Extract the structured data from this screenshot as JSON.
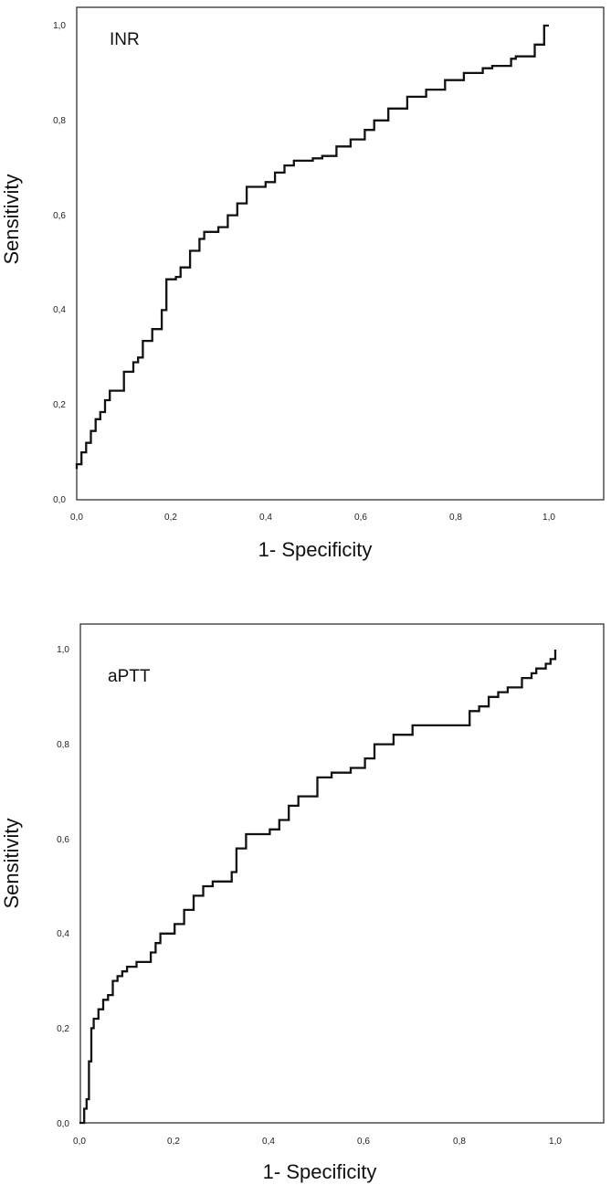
{
  "colors": {
    "line": "#111111",
    "frame": "#222222",
    "background": "#ffffff"
  },
  "chart_data": [
    {
      "type": "line",
      "title": "INR",
      "xlabel": "1- Specificity",
      "ylabel": "Sensitivity",
      "xlim": [
        0,
        1.1
      ],
      "ylim": [
        0,
        1.0
      ],
      "x_ticks": [
        "0,0",
        "0,2",
        "0,4",
        "0,6",
        "0,8",
        "1,0"
      ],
      "y_ticks": [
        "0,0",
        "0,2",
        "0,4",
        "0,6",
        "0,8",
        "1,0"
      ],
      "series": [
        {
          "name": "INR",
          "x": [
            0.0,
            0.0,
            0.01,
            0.01,
            0.02,
            0.02,
            0.03,
            0.03,
            0.04,
            0.04,
            0.05,
            0.05,
            0.06,
            0.06,
            0.07,
            0.07,
            0.1,
            0.1,
            0.12,
            0.13,
            0.14,
            0.14,
            0.16,
            0.16,
            0.18,
            0.18,
            0.19,
            0.19,
            0.21,
            0.22,
            0.24,
            0.26,
            0.27,
            0.3,
            0.32,
            0.34,
            0.36,
            0.36,
            0.4,
            0.42,
            0.44,
            0.46,
            0.5,
            0.52,
            0.55,
            0.55,
            0.58,
            0.61,
            0.63,
            0.66,
            0.7,
            0.74,
            0.78,
            0.82,
            0.86,
            0.88,
            0.92,
            0.93,
            0.95,
            0.97,
            0.97,
            0.99,
            1.0
          ],
          "y": [
            0.065,
            0.075,
            0.085,
            0.1,
            0.1,
            0.12,
            0.12,
            0.145,
            0.155,
            0.17,
            0.18,
            0.185,
            0.185,
            0.21,
            0.23,
            0.23,
            0.23,
            0.27,
            0.29,
            0.3,
            0.31,
            0.335,
            0.345,
            0.36,
            0.38,
            0.4,
            0.42,
            0.465,
            0.47,
            0.49,
            0.525,
            0.55,
            0.565,
            0.575,
            0.6,
            0.625,
            0.65,
            0.66,
            0.67,
            0.69,
            0.705,
            0.715,
            0.72,
            0.725,
            0.73,
            0.745,
            0.76,
            0.78,
            0.8,
            0.825,
            0.85,
            0.865,
            0.885,
            0.9,
            0.91,
            0.915,
            0.93,
            0.935,
            0.935,
            0.95,
            0.96,
            1.0,
            1.0
          ]
        }
      ]
    },
    {
      "type": "line",
      "title": "aPTT",
      "xlabel": "1- Specificity",
      "ylabel": "Sensitivity",
      "xlim": [
        0,
        1.1
      ],
      "ylim": [
        0,
        1.0
      ],
      "x_ticks": [
        "0,0",
        "0,2",
        "0,4",
        "0,6",
        "0,8",
        "1,0"
      ],
      "y_ticks": [
        "0,0",
        "0,2",
        "0,4",
        "0,6",
        "0,8",
        "1,0"
      ],
      "series": [
        {
          "name": "aPTT",
          "x": [
            0.0,
            0.01,
            0.01,
            0.015,
            0.02,
            0.02,
            0.025,
            0.03,
            0.04,
            0.05,
            0.06,
            0.07,
            0.08,
            0.09,
            0.1,
            0.12,
            0.15,
            0.16,
            0.17,
            0.2,
            0.2,
            0.22,
            0.24,
            0.26,
            0.28,
            0.32,
            0.33,
            0.35,
            0.4,
            0.42,
            0.44,
            0.46,
            0.5,
            0.53,
            0.55,
            0.57,
            0.6,
            0.62,
            0.66,
            0.7,
            0.75,
            0.8,
            0.82,
            0.84,
            0.86,
            0.88,
            0.9,
            0.93,
            0.95,
            0.96,
            0.98,
            0.99,
            1.0
          ],
          "y": [
            0.0,
            0.0,
            0.03,
            0.05,
            0.06,
            0.13,
            0.2,
            0.22,
            0.24,
            0.26,
            0.27,
            0.3,
            0.31,
            0.32,
            0.33,
            0.34,
            0.36,
            0.38,
            0.4,
            0.4,
            0.42,
            0.45,
            0.48,
            0.5,
            0.51,
            0.53,
            0.58,
            0.61,
            0.62,
            0.64,
            0.67,
            0.69,
            0.73,
            0.74,
            0.74,
            0.75,
            0.77,
            0.8,
            0.82,
            0.84,
            0.84,
            0.84,
            0.87,
            0.88,
            0.9,
            0.91,
            0.92,
            0.94,
            0.95,
            0.96,
            0.97,
            0.98,
            1.0
          ]
        }
      ]
    }
  ]
}
